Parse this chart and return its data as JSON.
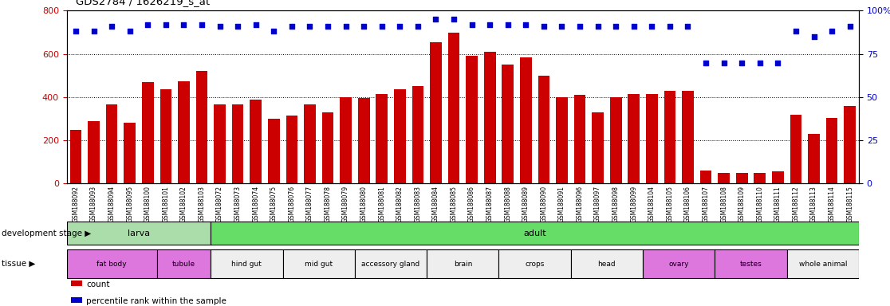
{
  "title": "GDS2784 / 1626219_s_at",
  "samples": [
    "GSM188092",
    "GSM188093",
    "GSM188094",
    "GSM188095",
    "GSM188100",
    "GSM188101",
    "GSM188102",
    "GSM188103",
    "GSM188072",
    "GSM188073",
    "GSM188074",
    "GSM188075",
    "GSM188076",
    "GSM188077",
    "GSM188078",
    "GSM188079",
    "GSM188080",
    "GSM188081",
    "GSM188082",
    "GSM188083",
    "GSM188084",
    "GSM188085",
    "GSM188086",
    "GSM188087",
    "GSM188088",
    "GSM188089",
    "GSM188090",
    "GSM188091",
    "GSM188096",
    "GSM188097",
    "GSM188098",
    "GSM188099",
    "GSM188104",
    "GSM188105",
    "GSM188106",
    "GSM188107",
    "GSM188108",
    "GSM188109",
    "GSM188110",
    "GSM188111",
    "GSM188112",
    "GSM188113",
    "GSM188114",
    "GSM188115"
  ],
  "counts": [
    250,
    290,
    365,
    280,
    470,
    435,
    475,
    520,
    365,
    365,
    390,
    300,
    315,
    365,
    330,
    400,
    395,
    415,
    435,
    450,
    655,
    700,
    590,
    610,
    550,
    585,
    500,
    400,
    410,
    330,
    400,
    415,
    415,
    430,
    430,
    60,
    50,
    50,
    50,
    55,
    320,
    230,
    305,
    360
  ],
  "percentile": [
    88,
    88,
    91,
    88,
    92,
    92,
    92,
    92,
    91,
    91,
    92,
    88,
    91,
    91,
    91,
    91,
    91,
    91,
    91,
    91,
    95,
    95,
    92,
    92,
    92,
    92,
    91,
    91,
    91,
    91,
    91,
    91,
    91,
    91,
    91,
    70,
    70,
    70,
    70,
    70,
    88,
    85,
    88,
    91
  ],
  "bar_color": "#cc0000",
  "dot_color": "#0000cc",
  "ylim_left": [
    0,
    800
  ],
  "ylim_right": [
    0,
    100
  ],
  "yticks_left": [
    0,
    200,
    400,
    600,
    800
  ],
  "yticks_right": [
    0,
    25,
    50,
    75,
    100
  ],
  "dev_stages": [
    {
      "name": "larva",
      "start": 0,
      "end": 8,
      "color": "#aaddaa"
    },
    {
      "name": "adult",
      "start": 8,
      "end": 44,
      "color": "#66dd66"
    }
  ],
  "tissues": [
    {
      "name": "fat body",
      "start": 0,
      "end": 5,
      "color": "#dd77dd"
    },
    {
      "name": "tubule",
      "start": 5,
      "end": 8,
      "color": "#dd77dd"
    },
    {
      "name": "hind gut",
      "start": 8,
      "end": 12,
      "color": "#eeeeee"
    },
    {
      "name": "mid gut",
      "start": 12,
      "end": 16,
      "color": "#eeeeee"
    },
    {
      "name": "accessory gland",
      "start": 16,
      "end": 20,
      "color": "#eeeeee"
    },
    {
      "name": "brain",
      "start": 20,
      "end": 24,
      "color": "#eeeeee"
    },
    {
      "name": "crops",
      "start": 24,
      "end": 28,
      "color": "#eeeeee"
    },
    {
      "name": "head",
      "start": 28,
      "end": 32,
      "color": "#eeeeee"
    },
    {
      "name": "ovary",
      "start": 32,
      "end": 36,
      "color": "#dd77dd"
    },
    {
      "name": "testes",
      "start": 36,
      "end": 40,
      "color": "#dd77dd"
    },
    {
      "name": "whole animal",
      "start": 40,
      "end": 44,
      "color": "#eeeeee"
    }
  ]
}
